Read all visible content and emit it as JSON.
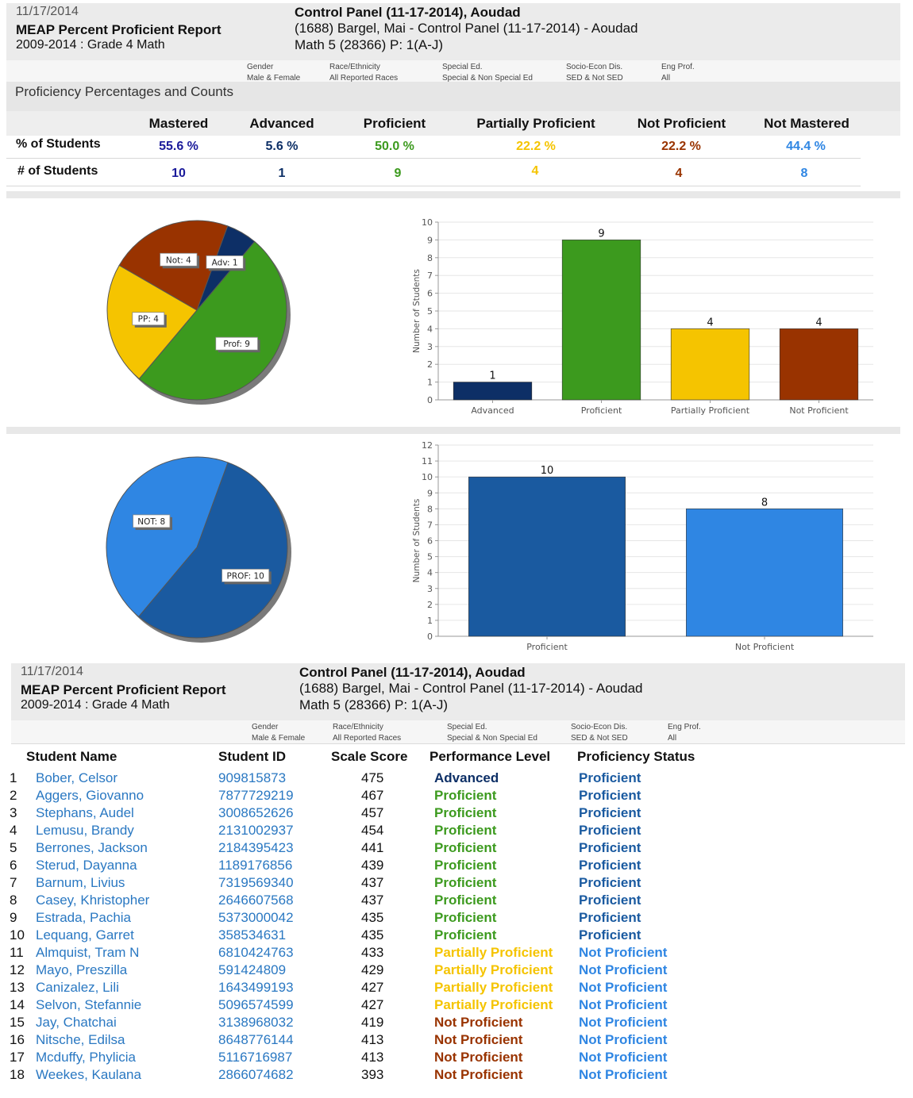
{
  "header1": {
    "date": "11/17/2014",
    "report_title": "MEAP Percent Proficient Report",
    "subtitle": "2009-2014 : Grade 4 Math",
    "panel": "Control Panel (11-17-2014), Aoudad",
    "teacher": "(1688) Bargel, Mai  - Control Panel (11-17-2014) - Aoudad",
    "course": "Math 5 (28366) P: 1(A-J)"
  },
  "filters": [
    {
      "label": "Gender",
      "value": "Male & Female"
    },
    {
      "label": "Race/Ethnicity",
      "value": "All Reported Races"
    },
    {
      "label": "Special Ed.",
      "value": "Special & Non Special Ed"
    },
    {
      "label": "Socio-Econ Dis.",
      "value": "SED & Not SED"
    },
    {
      "label": "Eng Prof.",
      "value": "All"
    }
  ],
  "summary": {
    "title": "Proficiency Percentages and Counts",
    "pct_label": "% of Students",
    "count_label": "# of Students",
    "columns": [
      {
        "name": "Mastered",
        "pct": "55.6 %",
        "count": "10",
        "color": "#1a1a9a"
      },
      {
        "name": "Advanced",
        "pct": "5.6 %",
        "count": "1",
        "color": "#0d2f66"
      },
      {
        "name": "Proficient",
        "pct": "50.0 %",
        "count": "9",
        "color": "#3c9a1e"
      },
      {
        "name": "Partially Proficient",
        "pct": "22.2 %",
        "count": "4",
        "color": "#f5c400"
      },
      {
        "name": "Not Proficient",
        "pct": "22.2 %",
        "count": "4",
        "color": "#993300"
      },
      {
        "name": "Not Mastered",
        "pct": "44.4 %",
        "count": "8",
        "color": "#2f86e3"
      }
    ]
  },
  "chart_data": [
    {
      "type": "pie",
      "labels": [
        "Adv",
        "Prof",
        "PP",
        "Not"
      ],
      "slice_labels": [
        "Adv: 1",
        "Prof: 9",
        "PP: 4",
        "Not: 4"
      ],
      "values": [
        1,
        9,
        4,
        4
      ],
      "colors": [
        "#0d2f66",
        "#3c9a1e",
        "#f5c400",
        "#993300"
      ]
    },
    {
      "type": "bar",
      "categories": [
        "Advanced",
        "Proficient",
        "Partially Proficient",
        "Not Proficient"
      ],
      "values": [
        1,
        9,
        4,
        4
      ],
      "colors": [
        "#0d2f66",
        "#3c9a1e",
        "#f5c400",
        "#993300"
      ],
      "ylabel": "Number of Students",
      "ylim": [
        0,
        10
      ],
      "yticks": [
        0,
        1,
        2,
        3,
        4,
        5,
        6,
        7,
        8,
        9,
        10
      ]
    },
    {
      "type": "pie",
      "labels": [
        "PROF",
        "NOT"
      ],
      "slice_labels": [
        "PROF: 10",
        "NOT: 8"
      ],
      "values": [
        10,
        8
      ],
      "colors": [
        "#1a5aa0",
        "#2f86e3"
      ]
    },
    {
      "type": "bar",
      "categories": [
        "Proficient",
        "Not Proficient"
      ],
      "values": [
        10,
        8
      ],
      "colors": [
        "#1a5aa0",
        "#2f86e3"
      ],
      "ylabel": "Number of Students",
      "ylim": [
        0,
        12
      ],
      "yticks": [
        0,
        1,
        2,
        3,
        4,
        5,
        6,
        7,
        8,
        9,
        10,
        11,
        12
      ]
    }
  ],
  "header2": {
    "date": "11/17/2014",
    "report_title": "MEAP Percent Proficient Report",
    "subtitle": "2009-2014 : Grade 4 Math",
    "panel": "Control Panel (11-17-2014), Aoudad",
    "teacher": "(1688) Bargel, Mai  - Control Panel (11-17-2014) - Aoudad",
    "course": "Math 5 (28366) P: 1(A-J)"
  },
  "table": {
    "headers": [
      "Student Name",
      "Student ID",
      "Scale Score",
      "Performance Level",
      "Proficiency Status"
    ],
    "level_colors": {
      "Advanced": "#0d2f66",
      "Proficient": "#3c9a1e",
      "Partially Proficient": "#f5c400",
      "Not Proficient": "#993300"
    },
    "status_colors": {
      "Proficient": "#1a5aa0",
      "Not Proficient": "#2f86e3"
    },
    "rows": [
      {
        "n": "1",
        "name": "Bober, Celsor",
        "id": "909815873",
        "score": "475",
        "level": "Advanced",
        "status": "Proficient"
      },
      {
        "n": "2",
        "name": "Aggers, Giovanno",
        "id": "7877729219",
        "score": "467",
        "level": "Proficient",
        "status": "Proficient"
      },
      {
        "n": "3",
        "name": "Stephans, Audel",
        "id": "3008652626",
        "score": "457",
        "level": "Proficient",
        "status": "Proficient"
      },
      {
        "n": "4",
        "name": "Lemusu, Brandy",
        "id": "2131002937",
        "score": "454",
        "level": "Proficient",
        "status": "Proficient"
      },
      {
        "n": "5",
        "name": "Berrones, Jackson",
        "id": "2184395423",
        "score": "441",
        "level": "Proficient",
        "status": "Proficient"
      },
      {
        "n": "6",
        "name": "Sterud, Dayanna",
        "id": "1189176856",
        "score": "439",
        "level": "Proficient",
        "status": "Proficient"
      },
      {
        "n": "7",
        "name": "Barnum, Livius",
        "id": "7319569340",
        "score": "437",
        "level": "Proficient",
        "status": "Proficient"
      },
      {
        "n": "8",
        "name": "Casey, Khristopher",
        "id": "2646607568",
        "score": "437",
        "level": "Proficient",
        "status": "Proficient"
      },
      {
        "n": "9",
        "name": "Estrada, Pachia",
        "id": "5373000042",
        "score": "435",
        "level": "Proficient",
        "status": "Proficient"
      },
      {
        "n": "10",
        "name": "Lequang, Garret",
        "id": "358534631",
        "score": "435",
        "level": "Proficient",
        "status": "Proficient"
      },
      {
        "n": "11",
        "name": "Almquist, Tram N",
        "id": "6810424763",
        "score": "433",
        "level": "Partially Proficient",
        "status": "Not Proficient"
      },
      {
        "n": "12",
        "name": "Mayo, Preszilla",
        "id": "591424809",
        "score": "429",
        "level": "Partially Proficient",
        "status": "Not Proficient"
      },
      {
        "n": "13",
        "name": "Canizalez, Lili",
        "id": "1643499193",
        "score": "427",
        "level": "Partially Proficient",
        "status": "Not Proficient"
      },
      {
        "n": "14",
        "name": "Selvon, Stefannie",
        "id": "5096574599",
        "score": "427",
        "level": "Partially Proficient",
        "status": "Not Proficient"
      },
      {
        "n": "15",
        "name": "Jay, Chatchai",
        "id": "3138968032",
        "score": "419",
        "level": "Not Proficient",
        "status": "Not Proficient"
      },
      {
        "n": "16",
        "name": "Nitsche, Edilsa",
        "id": "8648776144",
        "score": "413",
        "level": "Not Proficient",
        "status": "Not Proficient"
      },
      {
        "n": "17",
        "name": "Mcduffy, Phylicia",
        "id": "5116716987",
        "score": "413",
        "level": "Not Proficient",
        "status": "Not Proficient"
      },
      {
        "n": "18",
        "name": "Weekes, Kaulana",
        "id": "2866074682",
        "score": "393",
        "level": "Not Proficient",
        "status": "Not Proficient"
      }
    ]
  }
}
